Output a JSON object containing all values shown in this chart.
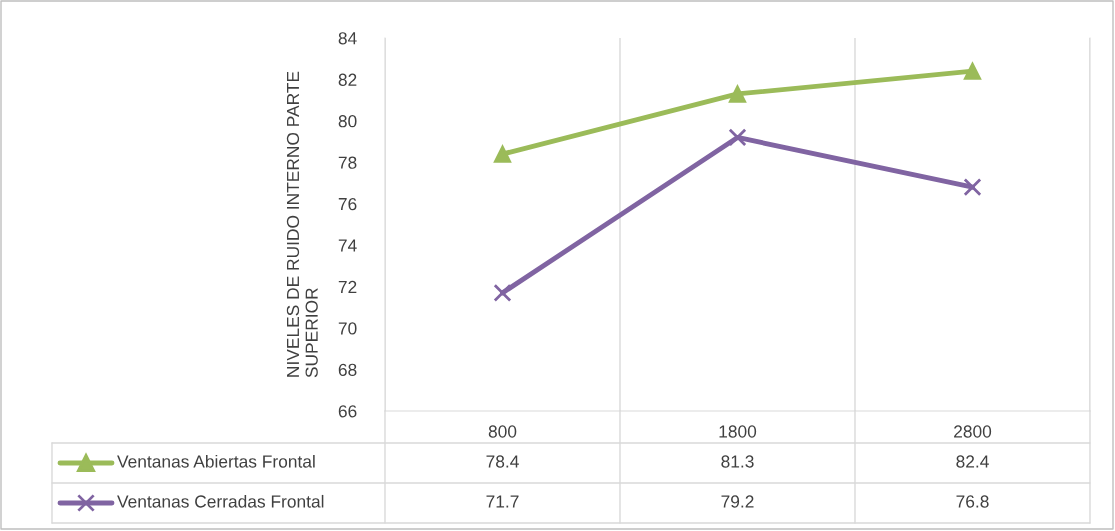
{
  "chart_data": {
    "type": "line",
    "ylabel": "NIVELES DE RUIDO INTERNO PARTE SUPERIOR",
    "categories": [
      "800",
      "1800",
      "2800"
    ],
    "series": [
      {
        "name": "Ventanas Abiertas Frontal",
        "color": "#9bbb59",
        "marker": "triangle",
        "values": [
          78.4,
          81.3,
          82.4
        ]
      },
      {
        "name": "Ventanas Cerradas Frontal",
        "color": "#8064a2",
        "marker": "cross",
        "values": [
          71.7,
          79.2,
          76.8
        ]
      }
    ],
    "ylim": [
      66,
      84
    ],
    "yticks": [
      66,
      68,
      70,
      72,
      74,
      76,
      78,
      80,
      82,
      84
    ],
    "grid": "x",
    "legend": "bottom",
    "data_labels": true
  }
}
